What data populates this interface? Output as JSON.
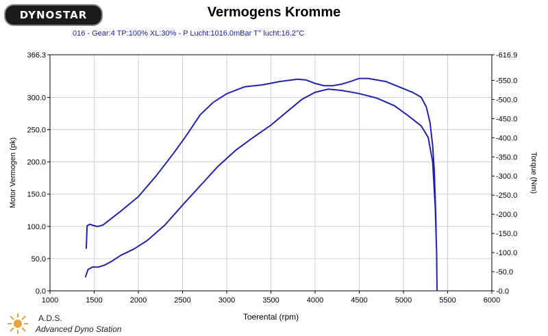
{
  "header": {
    "logo_text": "DYNOSTAR",
    "title": "Vermogens Kromme",
    "subtitle": "016 - Gear:4 TP:100% XL:30%  - P Lucht:1016.0mBar T° lucht:16.2°C"
  },
  "footer": {
    "name": "A.D.S.",
    "full_name": "Advanced Dyno Station"
  },
  "colors": {
    "line": "#1f1fb0",
    "grid": "#d0d0d0",
    "subtitle": "#1a1aa6"
  },
  "chart_data": {
    "type": "line",
    "xlabel": "Toerental (rpm)",
    "ylabel": "Motor Vermogen (pk)",
    "y2label": "Torque (Nm)",
    "xlim": [
      1000,
      6000
    ],
    "ylim": [
      0,
      366.3
    ],
    "y2lim": [
      0,
      616.9
    ],
    "x_ticks": [
      "1000",
      "1500",
      "2000",
      "2500",
      "3000",
      "3500",
      "4000",
      "4500",
      "5000",
      "5500",
      "6000"
    ],
    "y_ticks": [
      "0.0",
      "50.0",
      "100.0",
      "150.0",
      "200.0",
      "250.0",
      "300.0",
      "366.3"
    ],
    "y2_ticks": [
      "-0.0",
      "-50.0",
      "-100.0",
      "-150.0",
      "-200.0",
      "-250.0",
      "-300.0",
      "-350.0",
      "-400.0",
      "-450.0",
      "-500.0",
      "-550.0",
      "-616.9"
    ],
    "grid": true,
    "series": [
      {
        "axis": "left",
        "points": [
          [
            1400,
            21
          ],
          [
            1430,
            33
          ],
          [
            1480,
            37
          ],
          [
            1550,
            37
          ],
          [
            1620,
            40
          ],
          [
            1700,
            46
          ],
          [
            1800,
            55
          ],
          [
            1950,
            65
          ],
          [
            2100,
            78
          ],
          [
            2300,
            102
          ],
          [
            2500,
            133
          ],
          [
            2700,
            163
          ],
          [
            2900,
            193
          ],
          [
            3100,
            218
          ],
          [
            3300,
            238
          ],
          [
            3500,
            257
          ],
          [
            3700,
            280
          ],
          [
            3850,
            297
          ],
          [
            4000,
            308
          ],
          [
            4150,
            313
          ],
          [
            4300,
            311
          ],
          [
            4500,
            306
          ],
          [
            4700,
            299
          ],
          [
            4900,
            287
          ],
          [
            5050,
            272
          ],
          [
            5200,
            256
          ],
          [
            5280,
            238
          ],
          [
            5330,
            200
          ],
          [
            5360,
            130
          ],
          [
            5375,
            60
          ],
          [
            5380,
            0
          ]
        ]
      },
      {
        "axis": "right",
        "points": [
          [
            1410,
            110
          ],
          [
            1420,
            170
          ],
          [
            1450,
            174
          ],
          [
            1500,
            170
          ],
          [
            1540,
            168
          ],
          [
            1600,
            172
          ],
          [
            1700,
            190
          ],
          [
            1800,
            208
          ],
          [
            2000,
            246
          ],
          [
            2200,
            300
          ],
          [
            2400,
            360
          ],
          [
            2550,
            408
          ],
          [
            2700,
            460
          ],
          [
            2850,
            493
          ],
          [
            3000,
            515
          ],
          [
            3200,
            533
          ],
          [
            3400,
            538
          ],
          [
            3600,
            547
          ],
          [
            3800,
            553
          ],
          [
            3900,
            551
          ],
          [
            4000,
            542
          ],
          [
            4100,
            536
          ],
          [
            4200,
            536
          ],
          [
            4300,
            540
          ],
          [
            4400,
            547
          ],
          [
            4500,
            555
          ],
          [
            4600,
            555
          ],
          [
            4800,
            547
          ],
          [
            4950,
            533
          ],
          [
            5100,
            519
          ],
          [
            5200,
            506
          ],
          [
            5260,
            480
          ],
          [
            5300,
            440
          ],
          [
            5330,
            380
          ],
          [
            5350,
            310
          ],
          [
            5365,
            200
          ],
          [
            5370,
            150
          ]
        ]
      }
    ]
  }
}
